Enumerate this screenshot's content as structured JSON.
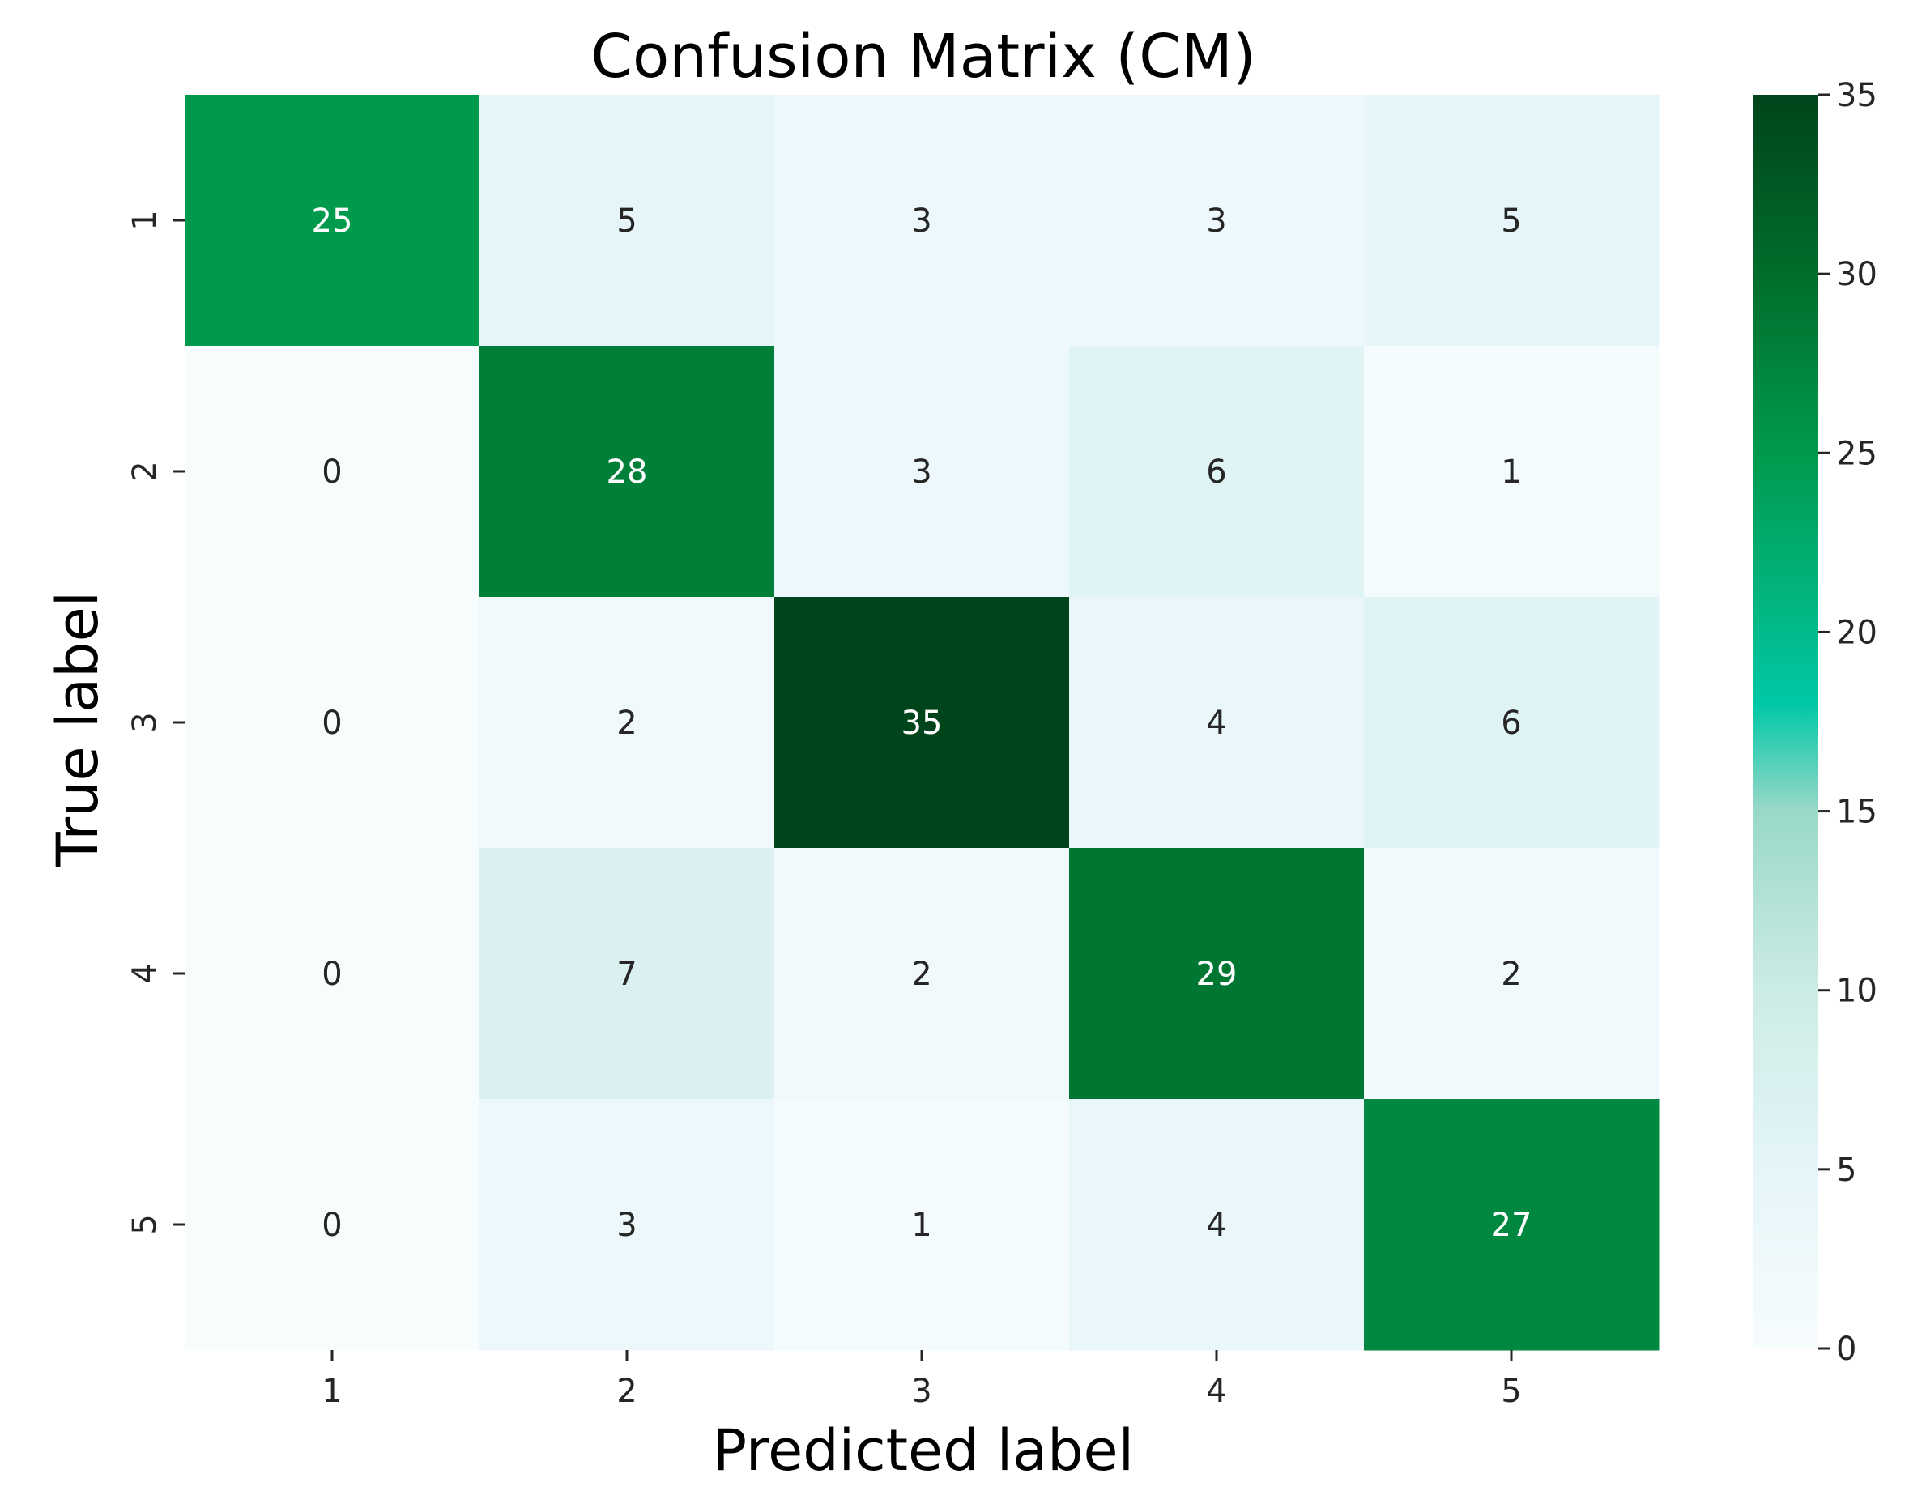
{
  "chart_data": {
    "type": "heatmap",
    "title": "Confusion Matrix (CM)",
    "xlabel": "Predicted label",
    "ylabel": "True label",
    "x_categories": [
      "1",
      "2",
      "3",
      "4",
      "5"
    ],
    "y_categories": [
      "1",
      "2",
      "3",
      "4",
      "5"
    ],
    "values": [
      [
        25,
        5,
        3,
        3,
        5
      ],
      [
        0,
        28,
        3,
        6,
        1
      ],
      [
        0,
        2,
        35,
        4,
        6
      ],
      [
        0,
        7,
        2,
        29,
        2
      ],
      [
        0,
        3,
        1,
        4,
        27
      ]
    ],
    "colorbar": {
      "range": [
        0,
        35
      ],
      "ticks": [
        "0",
        "5",
        "10",
        "15",
        "20",
        "25",
        "30",
        "35"
      ],
      "colormap": "BuGn"
    },
    "colors": {
      "low": "#f7fcfd",
      "high": "#00441b",
      "text_dark": "#262626",
      "text_light": "#ffffff"
    }
  }
}
